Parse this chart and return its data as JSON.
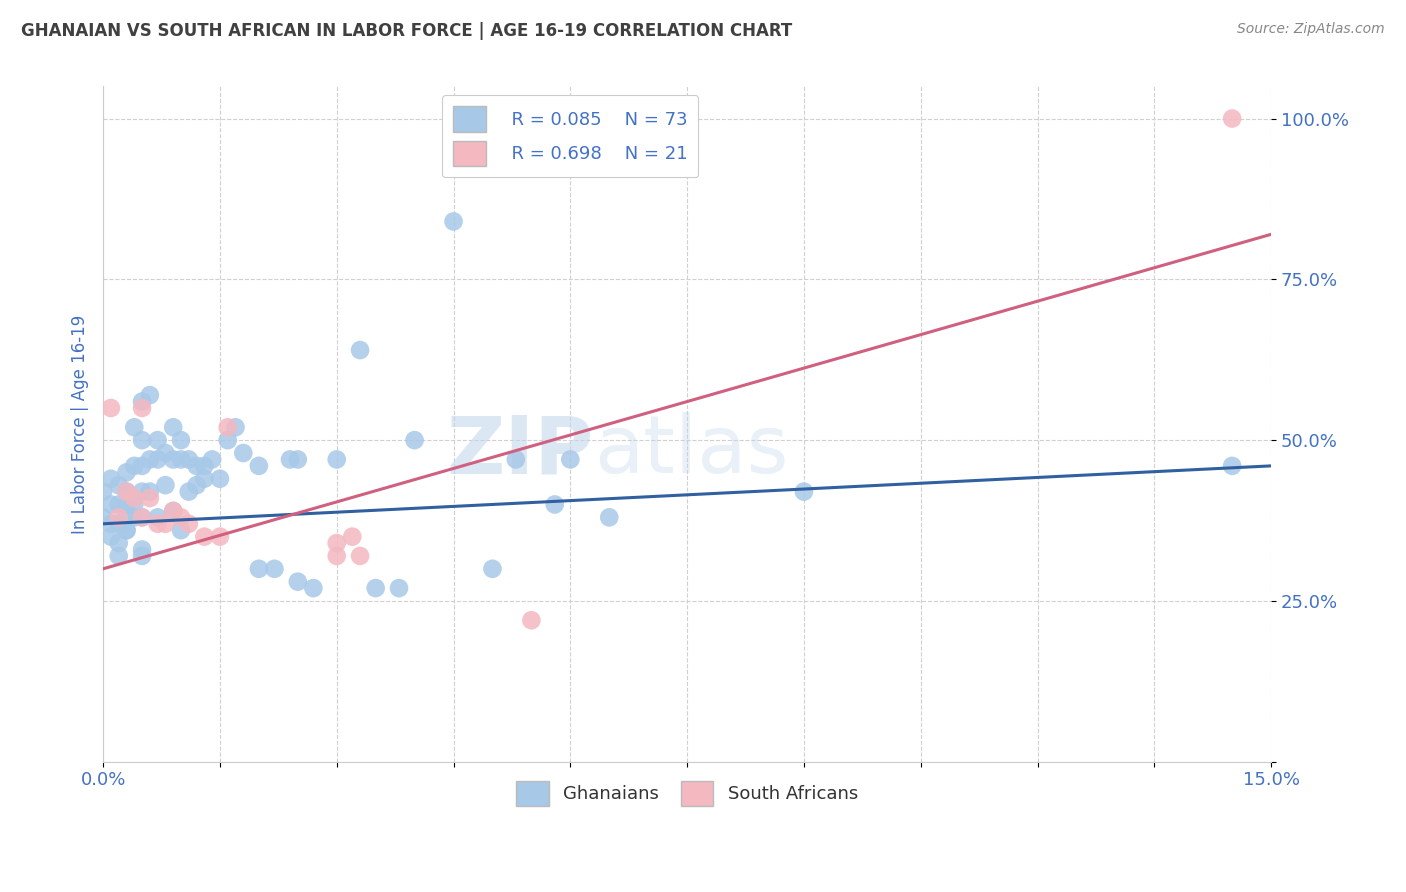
{
  "title": "GHANAIAN VS SOUTH AFRICAN IN LABOR FORCE | AGE 16-19 CORRELATION CHART",
  "source": "Source: ZipAtlas.com",
  "ylabel_label": "In Labor Force | Age 16-19",
  "watermark_zip": "ZIP",
  "watermark_atlas": "atlas",
  "xlim": [
    0.0,
    0.15
  ],
  "ylim": [
    0.0,
    1.05
  ],
  "xticks": [
    0.0,
    0.015,
    0.03,
    0.045,
    0.06,
    0.075,
    0.09,
    0.105,
    0.12,
    0.135,
    0.15
  ],
  "ytick_positions": [
    0.0,
    0.25,
    0.5,
    0.75,
    1.0
  ],
  "ytick_labels": [
    "",
    "25.0%",
    "50.0%",
    "75.0%",
    "100.0%"
  ],
  "xtick_labels": [
    "0.0%",
    "",
    "",
    "",
    "",
    "",
    "",
    "",
    "",
    "",
    "15.0%"
  ],
  "blue_scatter_color": "#a8c8e8",
  "pink_scatter_color": "#f4b8c0",
  "blue_line_color": "#3060a0",
  "pink_line_color": "#d06080",
  "legend_text_color": "#4472c4",
  "title_color": "#404040",
  "axis_label_color": "#4472c4",
  "tick_color": "#4472c4",
  "background_color": "#ffffff",
  "grid_color": "#d0d0d0",
  "source_color": "#888888",
  "ghanaians_x": [
    0.0,
    0.001,
    0.001,
    0.001,
    0.002,
    0.002,
    0.002,
    0.002,
    0.003,
    0.003,
    0.003,
    0.003,
    0.003,
    0.004,
    0.004,
    0.004,
    0.005,
    0.005,
    0.005,
    0.005,
    0.005,
    0.005,
    0.006,
    0.006,
    0.007,
    0.007,
    0.007,
    0.008,
    0.008,
    0.009,
    0.009,
    0.009,
    0.01,
    0.01,
    0.01,
    0.011,
    0.011,
    0.012,
    0.012,
    0.013,
    0.013,
    0.014,
    0.015,
    0.016,
    0.017,
    0.018,
    0.02,
    0.02,
    0.022,
    0.024,
    0.025,
    0.025,
    0.027,
    0.03,
    0.033,
    0.035,
    0.038,
    0.04,
    0.045,
    0.05,
    0.053,
    0.058,
    0.06,
    0.065,
    0.09,
    0.145,
    0.0,
    0.001,
    0.002,
    0.003,
    0.004,
    0.005,
    0.006
  ],
  "ghanaians_y": [
    0.42,
    0.44,
    0.4,
    0.37,
    0.43,
    0.4,
    0.37,
    0.34,
    0.45,
    0.42,
    0.4,
    0.38,
    0.36,
    0.52,
    0.46,
    0.4,
    0.56,
    0.5,
    0.46,
    0.42,
    0.38,
    0.33,
    0.57,
    0.47,
    0.5,
    0.47,
    0.38,
    0.48,
    0.43,
    0.52,
    0.47,
    0.39,
    0.5,
    0.47,
    0.36,
    0.47,
    0.42,
    0.46,
    0.43,
    0.46,
    0.44,
    0.47,
    0.44,
    0.5,
    0.52,
    0.48,
    0.46,
    0.3,
    0.3,
    0.47,
    0.47,
    0.28,
    0.27,
    0.47,
    0.64,
    0.27,
    0.27,
    0.5,
    0.84,
    0.3,
    0.47,
    0.4,
    0.47,
    0.38,
    0.42,
    0.46,
    0.38,
    0.35,
    0.32,
    0.36,
    0.38,
    0.32,
    0.42
  ],
  "south_africans_x": [
    0.001,
    0.002,
    0.003,
    0.004,
    0.005,
    0.005,
    0.006,
    0.007,
    0.008,
    0.009,
    0.01,
    0.011,
    0.013,
    0.015,
    0.016,
    0.03,
    0.03,
    0.032,
    0.033,
    0.055,
    0.145
  ],
  "south_africans_y": [
    0.55,
    0.38,
    0.42,
    0.41,
    0.55,
    0.38,
    0.41,
    0.37,
    0.37,
    0.39,
    0.38,
    0.37,
    0.35,
    0.35,
    0.52,
    0.34,
    0.32,
    0.35,
    0.32,
    0.22,
    1.0
  ],
  "blue_trend": [
    0.37,
    0.46
  ],
  "pink_trend": [
    0.3,
    0.82
  ]
}
